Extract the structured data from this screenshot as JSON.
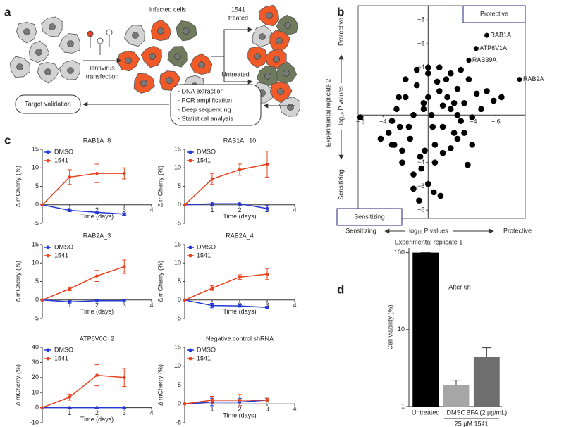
{
  "panel_labels": [
    "a",
    "b",
    "c",
    "d"
  ],
  "diagram": {
    "infected_cells": "infected cells",
    "transfection": [
      "lentivirus",
      "transfection"
    ],
    "treated": [
      "1541",
      "treated"
    ],
    "untreated": "Untreated",
    "steps": [
      "- DNA extraction",
      "- PCR amplification",
      "- Deep sequencing",
      "- Statistical analysis"
    ],
    "validation": "Target validation"
  },
  "chart_data": [
    {
      "type": "scatter",
      "x_label": "Experimental replicate 1",
      "x_unit_label": "log₁₀ P values",
      "x_low_label": "Sensitizing",
      "x_high_label": "Protective",
      "y_label": "Experimental replicate 2",
      "y_unit_label": "log₁₀ P values",
      "y_low_label": "Sensitizing",
      "y_high_label": "Protective",
      "corner_labels": [
        "Protective",
        "Sensitizing"
      ],
      "xlim": [
        -6.2,
        8.6
      ],
      "ylim": [
        -8.7,
        9.2
      ],
      "xticks": [
        {
          "value": -6,
          "label": "− 6"
        },
        {
          "value": -4,
          "label": "−4"
        },
        {
          "value": 4,
          "label": "−4"
        },
        {
          "value": 6,
          "label": "− 6"
        }
      ],
      "yticks": [
        {
          "value": 8,
          "label": "−8"
        },
        {
          "value": 6,
          "label": "−6"
        },
        {
          "value": 4,
          "label": "−4"
        },
        {
          "value": -4,
          "label": "−4"
        },
        {
          "value": -6,
          "label": "−6"
        },
        {
          "value": -8,
          "label": "−8"
        }
      ],
      "color": "#000000",
      "x": [
        -4.2,
        -3.5,
        -3.2,
        -3,
        -2.8,
        -2.5,
        -2.3,
        -2,
        -1.6,
        -1.3,
        -1,
        -0.7,
        -0.4,
        0,
        0.3,
        0.6,
        1,
        1.3,
        1.6,
        2,
        2.3,
        2.6,
        2.9,
        3.2,
        3.6,
        3.9,
        4.3,
        4.7,
        5.2,
        5.8,
        -3.2,
        -2.3,
        -1.3,
        -0.6,
        0,
        0.6,
        1.3,
        2,
        2.6,
        3.2,
        3.9,
        -2,
        -1,
        0,
        1,
        2,
        -1.3,
        0,
        1.3,
        2.6,
        0.4,
        -0.4,
        1.7,
        -2.6,
        0.8,
        2.9,
        -0.3,
        0.5,
        -1.7,
        2.3,
        -6,
        6.5,
        3.5,
        -0.8,
        1.1
      ],
      "y": [
        -2,
        -1.5,
        -0.5,
        -2.5,
        0.5,
        -1,
        -3,
        1.5,
        -2,
        0,
        2.5,
        -3.5,
        1,
        3.5,
        0,
        -2.5,
        2,
        -1,
        3,
        0.5,
        -1.5,
        2.2,
        -0.5,
        1,
        3,
        -0.2,
        1.8,
        0.5,
        2,
        1.2,
        -2.5,
        -4,
        -5,
        -4.5,
        -5.8,
        -4,
        -3.2,
        -2.8,
        -2,
        -1.5,
        -2.5,
        3,
        3.8,
        4,
        4,
        3.5,
        -6.2,
        1.5,
        0.8,
        0,
        -1,
        0.5,
        1.5,
        1.5,
        2.8,
        3.8,
        -3,
        -6.5,
        -1,
        1,
        -0.2,
        1.5,
        -4.2,
        -7.2,
        -6.8
      ],
      "annotation_color": "#1a9a50",
      "annotations": [
        {
          "text": "RAB1A",
          "x": 5.2,
          "y": 6.7
        },
        {
          "text": "ATP6V1A",
          "x": 4.25,
          "y": 5.6
        },
        {
          "text": "RAB39A",
          "x": 3.6,
          "y": 4.6
        },
        {
          "text": "RAB2A",
          "x": 8.1,
          "y": 3
        }
      ]
    },
    {
      "type": "line",
      "title": "RAB1A_8",
      "x_label": "Time (days)",
      "y_label": "Δ mCherry (%)",
      "x": [
        0,
        1,
        2,
        3
      ],
      "xlim": [
        0,
        4
      ],
      "xticks": [
        1,
        2,
        3,
        4
      ],
      "ylim": [
        -5,
        15
      ],
      "yticks": [
        -5,
        0,
        5,
        10,
        15
      ],
      "series": [
        {
          "name": "DMSO",
          "color": "#2438d8",
          "values": [
            0,
            -1.5,
            -2,
            -2.5
          ],
          "errors": [
            0,
            0.3,
            0.3,
            0.3
          ]
        },
        {
          "name": "1541",
          "color": "#e8401c",
          "values": [
            0,
            7.5,
            8.5,
            8.5
          ],
          "errors": [
            0,
            2,
            2.5,
            1.5
          ]
        }
      ]
    },
    {
      "type": "line",
      "title": "RAB1A _10",
      "x_label": "Time (days)",
      "y_label": "Δ mCherry (%)",
      "x": [
        0,
        1,
        2,
        3
      ],
      "xlim": [
        0,
        4
      ],
      "xticks": [
        1,
        2,
        3,
        4
      ],
      "ylim": [
        -5,
        15
      ],
      "yticks": [
        -5,
        0,
        5,
        10,
        15
      ],
      "series": [
        {
          "name": "DMSO",
          "color": "#2438d8",
          "values": [
            0,
            0.3,
            0.3,
            -1
          ],
          "errors": [
            0,
            0.5,
            0.5,
            0.8
          ]
        },
        {
          "name": "1541",
          "color": "#e8401c",
          "values": [
            0,
            7,
            9.5,
            11
          ],
          "errors": [
            0,
            1.5,
            1.5,
            3.5
          ]
        }
      ]
    },
    {
      "type": "line",
      "title": "RAB2A_3",
      "x_label": "Time (days)",
      "y_label": "Δ mCherry (%)",
      "x": [
        0,
        1,
        2,
        3
      ],
      "xlim": [
        0,
        4
      ],
      "xticks": [
        1,
        2,
        3,
        4
      ],
      "ylim": [
        -5,
        15
      ],
      "yticks": [
        -5,
        0,
        5,
        10,
        15
      ],
      "series": [
        {
          "name": "DMSO",
          "color": "#2438d8",
          "values": [
            0,
            -0.5,
            -0.2,
            -0.2
          ],
          "errors": [
            0,
            0.3,
            0.3,
            0.3
          ]
        },
        {
          "name": "1541",
          "color": "#e8401c",
          "values": [
            0,
            3,
            6.5,
            9
          ],
          "errors": [
            0,
            0.5,
            1.5,
            1.8
          ]
        }
      ]
    },
    {
      "type": "line",
      "title": "RAB2A_4",
      "x_label": "Time (days)",
      "y_label": "Δ mCherry (%)",
      "x": [
        0,
        1,
        2,
        3
      ],
      "xlim": [
        0,
        4
      ],
      "xticks": [
        1,
        2,
        3,
        4
      ],
      "ylim": [
        -5,
        15
      ],
      "yticks": [
        -5,
        0,
        5,
        10,
        15
      ],
      "series": [
        {
          "name": "DMSO",
          "color": "#2438d8",
          "values": [
            0,
            -1.5,
            -1.6,
            -2
          ],
          "errors": [
            0,
            0.6,
            0.3,
            0.3
          ]
        },
        {
          "name": "1541",
          "color": "#e8401c",
          "values": [
            0,
            3.2,
            6.2,
            7
          ],
          "errors": [
            0,
            0.6,
            0.6,
            1.5
          ]
        }
      ]
    },
    {
      "type": "line",
      "title": "ATP6V0C_2",
      "x_label": "Time (days)",
      "y_label": "Δ mCherry (%)",
      "x": [
        0,
        1,
        2,
        3
      ],
      "xlim": [
        0,
        4
      ],
      "xticks": [
        1,
        2,
        3,
        4
      ],
      "ylim": [
        -10,
        40
      ],
      "yticks": [
        -10,
        0,
        10,
        20,
        30,
        40
      ],
      "series": [
        {
          "name": "DMSO",
          "color": "#2438d8",
          "values": [
            0,
            0,
            0,
            0
          ],
          "errors": [
            0,
            0.5,
            0.5,
            0.5
          ]
        },
        {
          "name": "1541",
          "color": "#e8401c",
          "values": [
            0,
            7,
            21.5,
            20
          ],
          "errors": [
            0,
            2,
            7,
            6
          ]
        }
      ]
    },
    {
      "type": "line",
      "title": "Negative control shRNA",
      "x_label": "Time (days)",
      "y_label": "Δ mCherry (%)",
      "x": [
        0,
        1,
        2,
        3
      ],
      "xlim": [
        0,
        4
      ],
      "xticks": [
        1,
        2,
        3,
        4
      ],
      "ylim": [
        -5,
        15
      ],
      "yticks": [
        -5,
        0,
        5,
        10,
        15
      ],
      "series": [
        {
          "name": "DMSO",
          "color": "#2438d8",
          "values": [
            0,
            0.5,
            0.5,
            1
          ],
          "errors": [
            0,
            1,
            1,
            0.5
          ]
        },
        {
          "name": "1541",
          "color": "#e8401c",
          "values": [
            0,
            1,
            1,
            1
          ],
          "errors": [
            0,
            1,
            1.5,
            0.5
          ]
        }
      ]
    },
    {
      "type": "bar",
      "title": "After 6h",
      "y_label": "Cell viability (%)",
      "log_scale": true,
      "ylim": [
        1,
        115
      ],
      "yticks": [
        1,
        10,
        100
      ],
      "categories": [
        "Untreated",
        "DMSO",
        "BFA (2 μg/mL)"
      ],
      "values": [
        100,
        1.9,
        4.4
      ],
      "errors": [
        0,
        0.3,
        1.4
      ],
      "colors": [
        "#000000",
        "#a6a6a6",
        "#6e6e6e"
      ],
      "group_label": "25 μM 1541"
    }
  ]
}
